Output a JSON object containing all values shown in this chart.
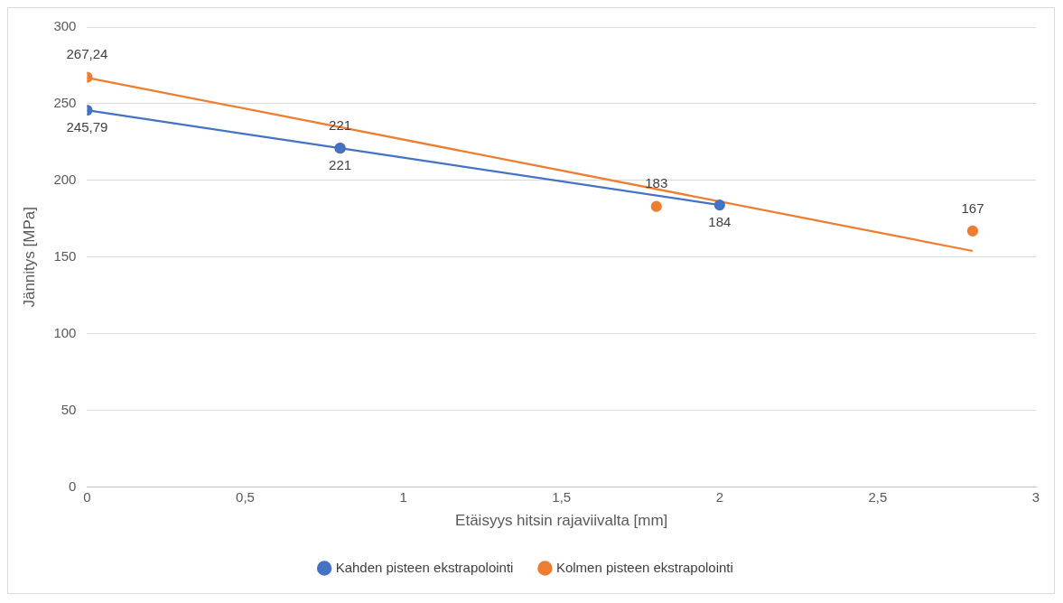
{
  "chart_data": {
    "type": "scatter",
    "xlabel": "Etäisyys hitsin rajaviivalta [mm]",
    "ylabel": "Jännitys [MPa]",
    "xlim": [
      0,
      3
    ],
    "xticks": [
      0,
      {
        "value": 0.5,
        "label": "0,5"
      },
      1,
      {
        "value": 1.5,
        "label": "1,5"
      },
      2,
      {
        "value": 2.5,
        "label": "2,5"
      },
      3
    ],
    "ylim": [
      0,
      300
    ],
    "yticks": [
      0,
      50,
      100,
      150,
      200,
      250,
      300
    ],
    "grid": "y",
    "legend": "bottom",
    "marker": "circle",
    "series": [
      {
        "name": "Kahden pisteen ekstrapolointi",
        "type": "line",
        "color": "#4472c4",
        "x": [
          0,
          0.8,
          2
        ],
        "values": [
          245.79,
          221,
          184
        ],
        "value_labels": [
          "245,79",
          "221",
          "184"
        ]
      },
      {
        "name": "Kolmen pisteen ekstrapolointi",
        "type": "scatter",
        "color": "#ed7d31",
        "x": [
          0,
          0.8,
          1.8,
          2.8
        ],
        "values": [
          267.24,
          221,
          183,
          167
        ],
        "value_labels": [
          "267,24",
          "221",
          "183",
          "167"
        ]
      },
      {
        "type": "line",
        "marker": "none",
        "color": "#ed7d31",
        "x": [
          0,
          2.8
        ],
        "values": [
          267,
          154
        ]
      }
    ]
  }
}
